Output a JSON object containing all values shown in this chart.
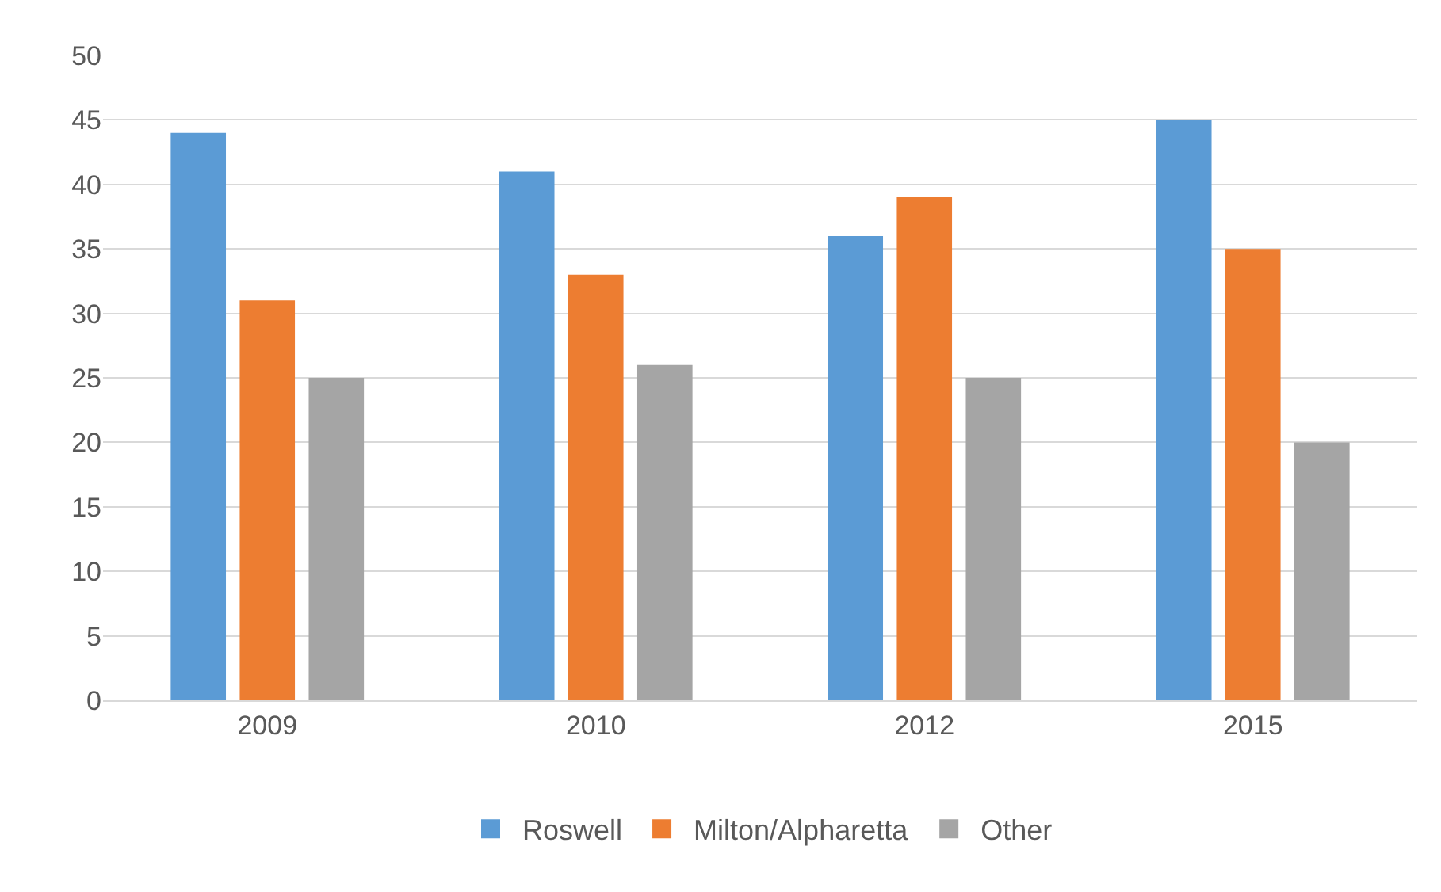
{
  "chart_data": {
    "type": "bar",
    "categories": [
      "2009",
      "2010",
      "2012",
      "2015"
    ],
    "series": [
      {
        "name": "Roswell",
        "color": "#5b9bd5",
        "values": [
          44,
          41,
          36,
          45
        ]
      },
      {
        "name": "Milton/Alpharetta",
        "color": "#ed7d31",
        "values": [
          31,
          33,
          39,
          35
        ]
      },
      {
        "name": "Other",
        "color": "#a5a5a5",
        "values": [
          25,
          26,
          25,
          20
        ]
      }
    ],
    "ylim": [
      0,
      50
    ],
    "yticks": [
      0,
      5,
      10,
      15,
      20,
      25,
      30,
      35,
      40,
      45,
      50
    ],
    "grid": "y",
    "legend": "bottom"
  }
}
